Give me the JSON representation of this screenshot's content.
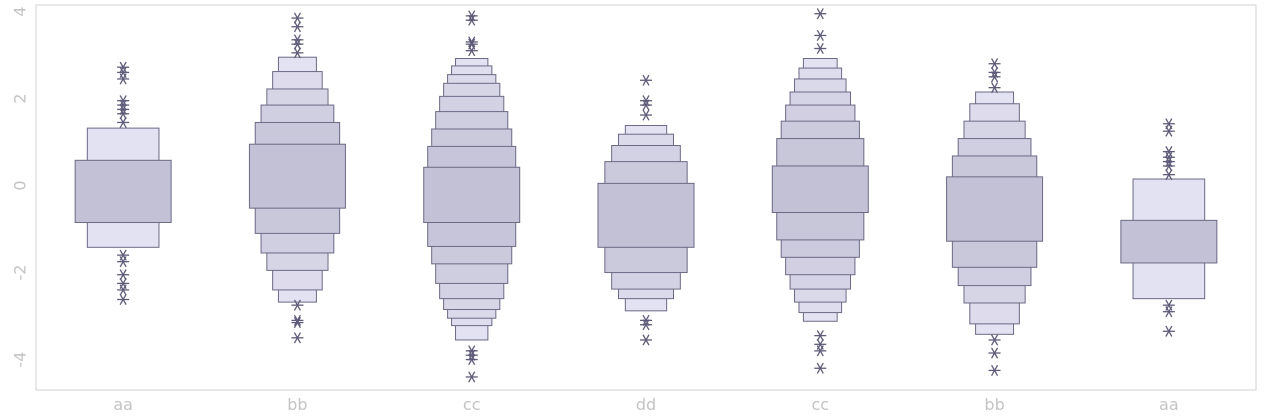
{
  "chart_data": {
    "type": "boxen",
    "title": "",
    "xlabel": "",
    "ylabel": "",
    "categories": [
      "aa",
      "bb",
      "cc",
      "dd",
      "cc",
      "bb",
      "aa"
    ],
    "y_ticks": [
      4,
      2,
      0,
      -2,
      -4
    ],
    "ylim": [
      -4.7,
      4.15
    ],
    "grid": false,
    "colors": {
      "box_fill_light": "#e3e2f2",
      "box_fill_dark": "#c3c1d5",
      "box_edge": "#6c6a84",
      "outlier": "#5f5c7a",
      "tick_label": "#c4c4c4",
      "frame": "#d2d2d2"
    },
    "groups": [
      {
        "category": "aa",
        "boxes": [
          [
            -0.85,
            0.58
          ],
          [
            -1.42,
            1.32
          ]
        ],
        "outliers": [
          2.72,
          2.6,
          2.45,
          1.95,
          1.85,
          1.75,
          1.65,
          1.45,
          -1.6,
          -1.75,
          -2.05,
          -2.25,
          -2.4,
          -2.62
        ]
      },
      {
        "category": "bb",
        "boxes": [
          [
            -0.52,
            0.95
          ],
          [
            -1.1,
            1.45
          ],
          [
            -1.55,
            1.85
          ],
          [
            -1.95,
            2.22
          ],
          [
            -2.4,
            2.62
          ],
          [
            -2.68,
            2.95
          ]
        ],
        "outliers": [
          3.85,
          3.65,
          3.35,
          3.25,
          3.05,
          -2.75,
          -3.1,
          -3.15,
          -3.5
        ]
      },
      {
        "category": "cc",
        "boxes": [
          [
            -0.85,
            0.42
          ],
          [
            -1.4,
            0.9
          ],
          [
            -1.8,
            1.3
          ],
          [
            -2.25,
            1.7
          ],
          [
            -2.6,
            2.05
          ],
          [
            -2.85,
            2.35
          ],
          [
            -3.05,
            2.55
          ],
          [
            -3.22,
            2.75
          ],
          [
            -3.55,
            2.92
          ]
        ],
        "outliers": [
          3.9,
          3.8,
          3.3,
          3.25,
          3.1,
          -3.8,
          -3.9,
          -4.0,
          -4.4
        ]
      },
      {
        "category": "dd",
        "boxes": [
          [
            -1.42,
            0.05
          ],
          [
            -2.0,
            0.55
          ],
          [
            -2.38,
            0.92
          ],
          [
            -2.6,
            1.18
          ],
          [
            -2.88,
            1.38
          ]
        ],
        "outliers": [
          2.42,
          1.95,
          1.85,
          1.62,
          -3.1,
          -3.2,
          -3.55
        ]
      },
      {
        "category": "cc",
        "boxes": [
          [
            -0.62,
            0.45
          ],
          [
            -1.25,
            1.08
          ],
          [
            -1.65,
            1.48
          ],
          [
            -2.05,
            1.85
          ],
          [
            -2.38,
            2.15
          ],
          [
            -2.68,
            2.45
          ],
          [
            -2.92,
            2.7
          ],
          [
            -3.12,
            2.92
          ]
        ],
        "outliers": [
          3.95,
          3.45,
          3.15,
          -3.45,
          -3.65,
          -3.8,
          -4.2
        ]
      },
      {
        "category": "bb",
        "boxes": [
          [
            -1.28,
            0.2
          ],
          [
            -1.88,
            0.68
          ],
          [
            -2.3,
            1.08
          ],
          [
            -2.7,
            1.48
          ],
          [
            -3.18,
            1.88
          ],
          [
            -3.42,
            2.15
          ]
        ],
        "outliers": [
          2.8,
          2.6,
          2.5,
          2.25,
          -3.55,
          -3.85,
          -4.25
        ]
      },
      {
        "category": "aa",
        "boxes": [
          [
            -1.78,
            -0.8
          ],
          [
            -2.6,
            0.15
          ]
        ],
        "outliers": [
          1.42,
          1.25,
          0.78,
          0.65,
          0.55,
          0.45,
          0.25,
          -2.75,
          -2.9,
          -3.35
        ]
      }
    ]
  }
}
